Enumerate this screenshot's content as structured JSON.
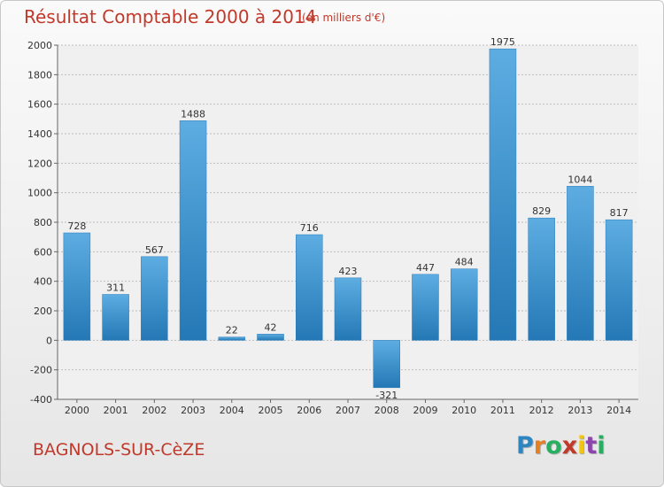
{
  "title": "Résultat Comptable 2000 à 2014",
  "subtitle": "(en milliers d'€)",
  "commune": "BAGNOLS-SUR-CèZE",
  "logo": {
    "letters": [
      {
        "ch": "P",
        "color": "#2e86c1"
      },
      {
        "ch": "r",
        "color": "#e67e22"
      },
      {
        "ch": "o",
        "color": "#27ae60"
      },
      {
        "ch": "x",
        "color": "#c0392b"
      },
      {
        "ch": "i",
        "color": "#f1c40f"
      },
      {
        "ch": "t",
        "color": "#8e44ad"
      },
      {
        "ch": "i",
        "color": "#27ae60"
      }
    ]
  },
  "chart_data": {
    "type": "bar",
    "title": "Résultat Comptable 2000 à 2014",
    "subtitle": "(en milliers d'€)",
    "categories": [
      "2000",
      "2001",
      "2002",
      "2003",
      "2004",
      "2005",
      "2006",
      "2007",
      "2008",
      "2009",
      "2010",
      "2011",
      "2012",
      "2013",
      "2014"
    ],
    "values": [
      728,
      311,
      567,
      1488,
      22,
      42,
      716,
      423,
      -321,
      447,
      484,
      1975,
      829,
      1044,
      817
    ],
    "value_labels": [
      "728",
      "311",
      "567",
      "1488",
      "22",
      "42",
      "716",
      "423",
      "-321",
      "447",
      "484",
      "1975",
      "829",
      "1044",
      "817"
    ],
    "ylim": [
      -400,
      2000
    ],
    "yticks": [
      -400,
      -200,
      0,
      200,
      400,
      600,
      800,
      1000,
      1200,
      1400,
      1600,
      1800,
      2000
    ],
    "ytick_labels": [
      "-400",
      "-200",
      "0",
      "200",
      "400",
      "600",
      "800",
      "1000",
      "1200",
      "1400",
      "1600",
      "1800",
      "2000"
    ],
    "grid": true,
    "bar_color": "#4aa3df"
  }
}
